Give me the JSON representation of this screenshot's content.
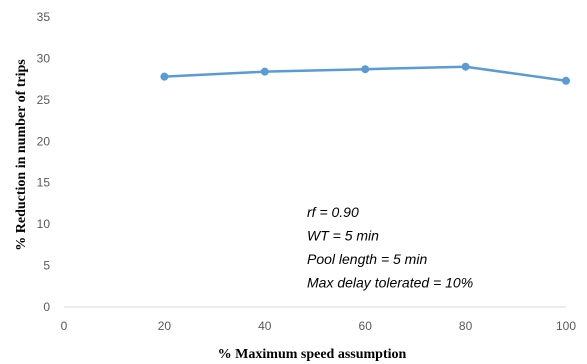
{
  "chart_data": {
    "type": "line",
    "xlabel": "% Maximum speed assumption",
    "ylabel": "% Reduction in number of trips",
    "xlim": [
      0,
      100
    ],
    "ylim": [
      0,
      35
    ],
    "xticks": [
      0,
      20,
      40,
      60,
      80,
      100
    ],
    "yticks": [
      0,
      5,
      10,
      15,
      20,
      25,
      30,
      35
    ],
    "grid": false,
    "legend": "none",
    "series": [
      {
        "x": [
          20,
          40,
          60,
          80,
          100
        ],
        "y": [
          27.8,
          28.4,
          28.7,
          29.0,
          27.3
        ],
        "color": "#5B9BD5"
      }
    ],
    "annotations": [
      "rf = 0.90",
      "WT = 5 min",
      "Pool length = 5 min",
      "Max delay tolerated = 10%"
    ]
  }
}
